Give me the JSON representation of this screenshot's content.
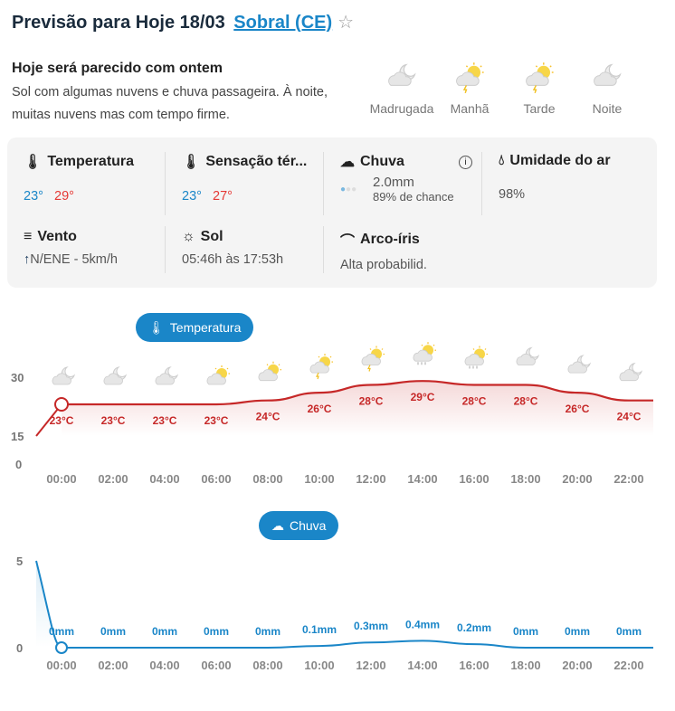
{
  "header": {
    "title": "Previsão para Hoje 18/03",
    "city": "Sobral (CE)"
  },
  "summary": {
    "heading": "Hoje será parecido com ontem",
    "text": "Sol com algumas nuvens e chuva passageira. À noite, muitas nuvens mas com tempo firme."
  },
  "periods": [
    {
      "label": "Madrugada",
      "icon": "moon-cloud"
    },
    {
      "label": "Manhã",
      "icon": "sun-storm"
    },
    {
      "label": "Tarde",
      "icon": "sun-storm"
    },
    {
      "label": "Noite",
      "icon": "moon-cloud"
    }
  ],
  "details": {
    "temperatura": {
      "label": "Temperatura",
      "min": "23°",
      "max": "29°"
    },
    "sensacao": {
      "label": "Sensação tér...",
      "min": "23°",
      "max": "27°"
    },
    "chuva": {
      "label": "Chuva",
      "amount": "2.0mm",
      "chance": "89% de chance"
    },
    "umidade": {
      "label": "Umidade do ar",
      "value": "98%"
    },
    "vento": {
      "label": "Vento",
      "value": "N/ENE - 5km/h"
    },
    "sol": {
      "label": "Sol",
      "value": "05:46h às 17:53h"
    },
    "arco": {
      "label": "Arco-íris",
      "value": "Alta probabilid."
    }
  },
  "colors": {
    "accent": "#1a86c8",
    "temp": "#c62828"
  },
  "chart_data": [
    {
      "type": "line",
      "title": "Temperatura",
      "x": [
        "00:00",
        "02:00",
        "04:00",
        "06:00",
        "08:00",
        "10:00",
        "12:00",
        "14:00",
        "16:00",
        "18:00",
        "20:00",
        "22:00"
      ],
      "values": [
        23,
        23,
        23,
        23,
        24,
        26,
        28,
        29,
        28,
        28,
        26,
        24
      ],
      "labels": [
        "23°C",
        "23°C",
        "23°C",
        "23°C",
        "24°C",
        "26°C",
        "28°C",
        "29°C",
        "28°C",
        "28°C",
        "26°C",
        "24°C"
      ],
      "icons": [
        "moon-cloud",
        "moon-cloud",
        "moon-cloud",
        "sun-cloud",
        "sun-cloud",
        "sun-storm",
        "sun-storm",
        "sun-rain",
        "sun-rain",
        "moon-cloud",
        "moon-cloud",
        "moon-cloud"
      ],
      "yticks": [
        "30",
        "15",
        "0"
      ]
    },
    {
      "type": "line",
      "title": "Chuva",
      "x": [
        "00:00",
        "02:00",
        "04:00",
        "06:00",
        "08:00",
        "10:00",
        "12:00",
        "14:00",
        "16:00",
        "18:00",
        "20:00",
        "22:00"
      ],
      "values": [
        0,
        0,
        0,
        0,
        0,
        0.1,
        0.3,
        0.4,
        0.2,
        0,
        0,
        0
      ],
      "labels": [
        "0mm",
        "0mm",
        "0mm",
        "0mm",
        "0mm",
        "0.1mm",
        "0.3mm",
        "0.4mm",
        "0.2mm",
        "0mm",
        "0mm",
        "0mm"
      ],
      "yticks": [
        "5",
        "0"
      ]
    }
  ]
}
